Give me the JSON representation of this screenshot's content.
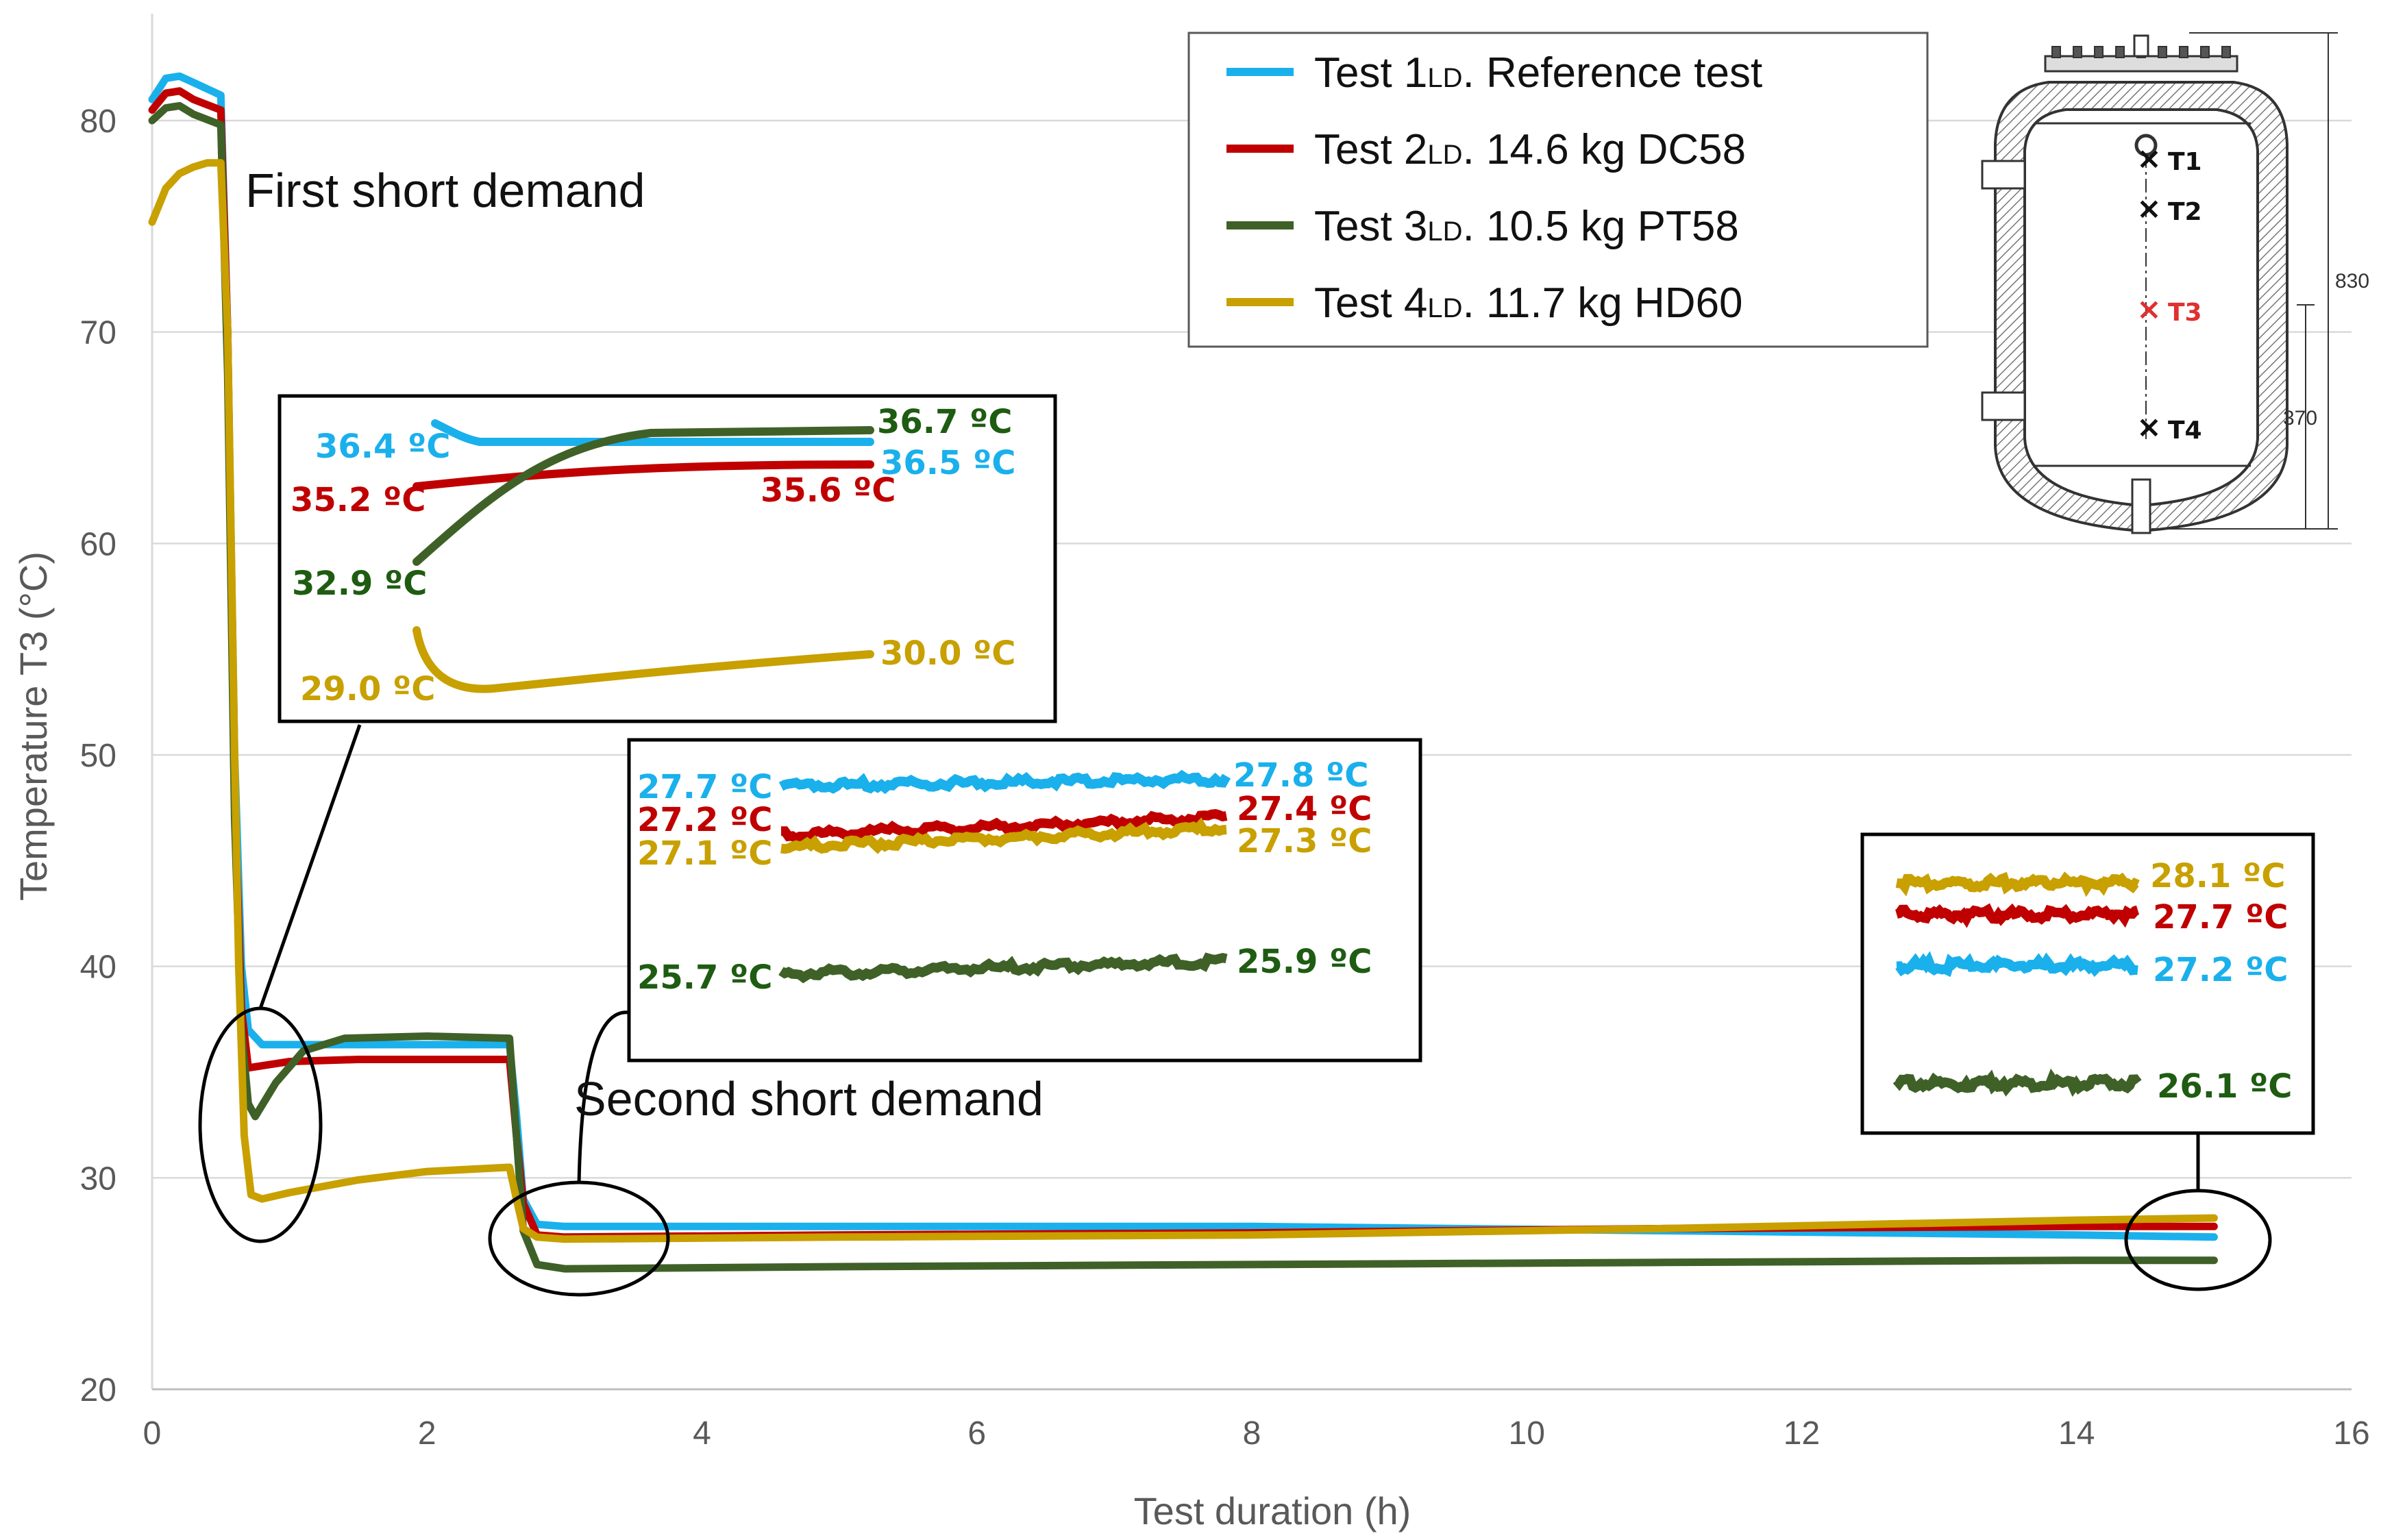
{
  "chart_data": {
    "type": "line",
    "xlabel": "Test duration (h)",
    "ylabel": "Temperature T3 (°C)",
    "xlim": [
      0,
      16
    ],
    "ylim": [
      20,
      85
    ],
    "x_ticks": [
      0,
      2,
      4,
      6,
      8,
      10,
      12,
      14,
      16
    ],
    "y_ticks": [
      20,
      30,
      40,
      50,
      60,
      70,
      80
    ],
    "grid": "horizontal",
    "legend_position": "top-right",
    "colors": {
      "blue": "#1ab0ec",
      "red": "#c00000",
      "green": "#3f6128",
      "gold": "#c8a000",
      "dark_green_text": "#1e5c12",
      "axis_text": "#595959",
      "gridline": "#d9d9d9"
    },
    "series": [
      {
        "name": "Test 1",
        "legend_sub": "LD",
        "legend_rest": ". Reference test",
        "color": "#1ab0ec",
        "x": [
          0,
          0.1,
          0.2,
          0.3,
          0.5,
          0.55,
          0.6,
          0.65,
          0.7,
          0.8,
          1.0,
          1.5,
          2.0,
          2.6,
          2.65,
          2.7,
          2.8,
          3.0,
          5.0,
          8.0,
          11.0,
          14.0,
          15.0
        ],
        "values": [
          81.0,
          82.0,
          82.1,
          81.8,
          81.2,
          70.0,
          50.0,
          40.0,
          37.0,
          36.3,
          36.3,
          36.3,
          36.3,
          36.3,
          33.0,
          29.0,
          27.8,
          27.7,
          27.7,
          27.7,
          27.5,
          27.3,
          27.2
        ]
      },
      {
        "name": "Test 2",
        "legend_sub": "LD",
        "legend_rest": ". 14.6 kg DC58",
        "color": "#c00000",
        "x": [
          0,
          0.1,
          0.2,
          0.3,
          0.5,
          0.55,
          0.6,
          0.65,
          0.7,
          0.8,
          1.0,
          1.5,
          2.0,
          2.6,
          2.65,
          2.7,
          2.8,
          3.0,
          5.0,
          8.0,
          11.0,
          14.0,
          15.0
        ],
        "values": [
          80.5,
          81.3,
          81.4,
          81.0,
          80.5,
          70.0,
          48.0,
          38.0,
          35.2,
          35.3,
          35.5,
          35.6,
          35.6,
          35.6,
          32.0,
          28.8,
          27.3,
          27.2,
          27.3,
          27.4,
          27.6,
          27.7,
          27.7
        ]
      },
      {
        "name": "Test 3",
        "legend_sub": "LD",
        "legend_rest": ". 10.5 kg PT58",
        "color": "#3f6128",
        "x": [
          0,
          0.1,
          0.2,
          0.3,
          0.5,
          0.55,
          0.6,
          0.65,
          0.7,
          0.75,
          0.9,
          1.1,
          1.4,
          2.0,
          2.6,
          2.65,
          2.7,
          2.8,
          3.0,
          5.0,
          8.0,
          11.0,
          14.0,
          15.0
        ],
        "values": [
          80.0,
          80.6,
          80.7,
          80.3,
          79.8,
          68.0,
          47.0,
          37.0,
          33.5,
          32.9,
          34.5,
          36.0,
          36.6,
          36.7,
          36.6,
          32.0,
          27.5,
          25.9,
          25.7,
          25.8,
          25.9,
          26.0,
          26.1,
          26.1
        ]
      },
      {
        "name": "Test 4",
        "legend_sub": "LD",
        "legend_rest": ". 11.7 kg HD60",
        "color": "#c8a000",
        "x": [
          0,
          0.1,
          0.2,
          0.3,
          0.4,
          0.5,
          0.55,
          0.6,
          0.63,
          0.67,
          0.72,
          0.8,
          1.0,
          1.5,
          2.0,
          2.6,
          2.65,
          2.7,
          2.8,
          3.0,
          5.0,
          8.0,
          11.0,
          14.0,
          15.0
        ],
        "values": [
          75.2,
          76.8,
          77.5,
          77.8,
          78.0,
          78.0,
          70.0,
          50.0,
          40.0,
          32.0,
          29.2,
          29.0,
          29.3,
          29.9,
          30.3,
          30.5,
          29.0,
          27.6,
          27.2,
          27.1,
          27.2,
          27.3,
          27.6,
          28.0,
          28.1
        ]
      }
    ],
    "annotations": {
      "first_demand": "First short demand",
      "second_demand": "Second short demand"
    },
    "inset1_labels": [
      {
        "text": "36.4  ºC",
        "color": "#1ab0ec"
      },
      {
        "text": "35.2  ºC",
        "color": "#c00000"
      },
      {
        "text": "32.9  ºC",
        "color": "#1e5c12"
      },
      {
        "text": "29.0  ºC",
        "color": "#c8a000"
      },
      {
        "text": "36.7  ºC",
        "color": "#1e5c12"
      },
      {
        "text": "36.5  ºC",
        "color": "#1ab0ec"
      },
      {
        "text": "35.6  ºC",
        "color": "#c00000"
      },
      {
        "text": "30.0  ºC",
        "color": "#c8a000"
      }
    ],
    "inset2_labels": [
      {
        "text": "27.7  ºC",
        "color": "#1ab0ec"
      },
      {
        "text": "27.2  ºC",
        "color": "#c00000"
      },
      {
        "text": "27.1  ºC",
        "color": "#c8a000"
      },
      {
        "text": "25.7  ºC",
        "color": "#1e5c12"
      },
      {
        "text": "27.8  ºC",
        "color": "#1ab0ec"
      },
      {
        "text": "27.4  ºC",
        "color": "#c00000"
      },
      {
        "text": "27.3  ºC",
        "color": "#c8a000"
      },
      {
        "text": "25.9  ºC",
        "color": "#1e5c12"
      }
    ],
    "inset3_labels": [
      {
        "text": "28.1  ºC",
        "color": "#c8a000"
      },
      {
        "text": "27.7  ºC",
        "color": "#c00000"
      },
      {
        "text": "27.2  ºC",
        "color": "#1ab0ec"
      },
      {
        "text": "26.1  ºC",
        "color": "#1e5c12"
      }
    ],
    "tank_diagram": {
      "sensors": [
        "T1",
        "T2",
        "T3",
        "T4"
      ],
      "dims": [
        "830",
        "370"
      ]
    }
  }
}
